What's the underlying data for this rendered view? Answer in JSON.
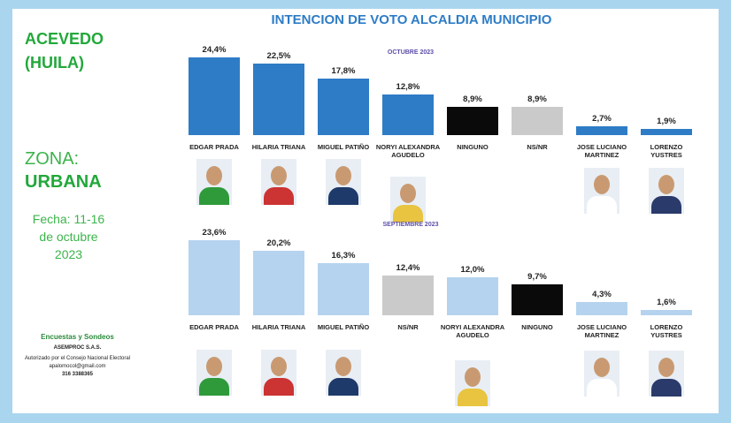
{
  "header": {
    "title": "INTENCION DE VOTO ALCALDIA MUNICIPIO"
  },
  "sidebar": {
    "place": [
      "ACEVEDO",
      "(HUILA)"
    ],
    "zone_label": "ZONA:",
    "zone": "URBANA",
    "date": [
      "Fecha: 11-16",
      "de octubre",
      "2023"
    ],
    "footer": [
      "Encuestas y Sondeos",
      "ASEMPROC S.A.S.",
      "Autorizado por el Consejo Nacional Electoral",
      "apalomocol@gmail.com",
      "316 3388365"
    ]
  },
  "chart_data": [
    {
      "type": "bar",
      "subtitle": "OCTUBRE 2023",
      "categories": [
        "EDGAR PRADA",
        "HILARIA TRIANA",
        "MIGUEL PATIÑO",
        "NORYI ALEXANDRA AGUDELO",
        "NINGUNO",
        "NS/NR",
        "JOSE LUCIANO MARTINEZ",
        "LORENZO YUSTRES"
      ],
      "values": [
        24.4,
        22.5,
        17.8,
        12.8,
        8.9,
        8.9,
        2.7,
        1.9
      ],
      "value_labels": [
        "24,4%",
        "22,5%",
        "17,8%",
        "12,8%",
        "8,9%",
        "8,9%",
        "2,7%",
        "1,9%"
      ],
      "colors": [
        "#2e7cc6",
        "#2e7cc6",
        "#2e7cc6",
        "#2e7cc6",
        "#0a0a0a",
        "#cacaca",
        "#2e7cc6",
        "#2e7cc6"
      ]
    },
    {
      "type": "bar",
      "subtitle": "SEPTIEMBRE 2023",
      "categories": [
        "EDGAR PRADA",
        "HILARIA TRIANA",
        "MIGUEL PATIÑO",
        "NS/NR",
        "NORYI ALEXANDRA AGUDELO",
        "NINGUNO",
        "JOSE LUCIANO MARTINEZ",
        "LORENZO YUSTRES"
      ],
      "values": [
        23.6,
        20.2,
        16.3,
        12.4,
        12.0,
        9.7,
        4.3,
        1.6
      ],
      "value_labels": [
        "23,6%",
        "20,2%",
        "16,3%",
        "12,4%",
        "12,0%",
        "9,7%",
        "4,3%",
        "1,6%"
      ],
      "colors": [
        "#b5d3ef",
        "#b5d3ef",
        "#b5d3ef",
        "#cacaca",
        "#b5d3ef",
        "#0a0a0a",
        "#b5d3ef",
        "#b5d3ef"
      ]
    }
  ]
}
